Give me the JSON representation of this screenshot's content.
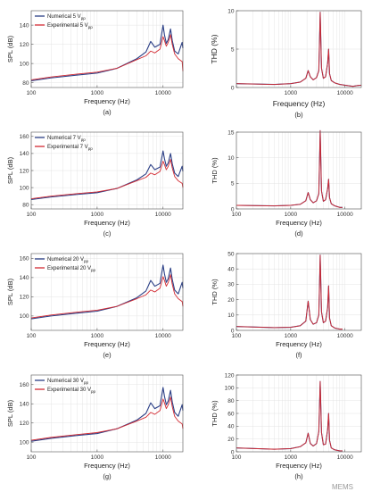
{
  "figure": {
    "captions": [
      "(a)",
      "(b)",
      "(c)",
      "(d)",
      "(e)",
      "(f)",
      "(g)",
      "(h)"
    ],
    "watermark": "MEMS"
  },
  "colors": {
    "numerical": "#2b3f86",
    "experimental": "#d32a32"
  },
  "chart_data": [
    {
      "type": "line",
      "log_x": true,
      "grid": true,
      "xlabel": "Frequency (Hz)",
      "ylabel": "SPL (dB)",
      "xlim": [
        100,
        20000
      ],
      "ylim": [
        75,
        155
      ],
      "xticks": [
        100,
        1000,
        10000
      ],
      "yticks": [
        80,
        100,
        120,
        140
      ],
      "legend_position": "top-left",
      "series": [
        {
          "name": "Numerical 5 V",
          "sub": "pp",
          "color": "#2b3f86",
          "x": [
            100,
            200,
            500,
            1000,
            2000,
            4000,
            5500,
            6500,
            7000,
            7500,
            9000,
            10000,
            10500,
            11200,
            12000,
            13000,
            13800,
            15000,
            17000,
            19500,
            20000
          ],
          "y": [
            82,
            85,
            88,
            90,
            95,
            105,
            112,
            123,
            120,
            117,
            120,
            140,
            130,
            121,
            125,
            136,
            124,
            113,
            110,
            122,
            116
          ]
        },
        {
          "name": "Experimental 5 V",
          "sub": "pp",
          "color": "#d32a32",
          "x": [
            100,
            200,
            500,
            1000,
            2000,
            4000,
            5500,
            6500,
            7000,
            7500,
            9000,
            10000,
            10500,
            11200,
            12000,
            13000,
            13800,
            15000,
            17000,
            19500,
            20000
          ],
          "y": [
            83,
            86,
            89,
            91,
            95,
            104,
            108,
            113,
            112,
            111,
            115,
            128,
            124,
            118,
            122,
            130,
            120,
            110,
            105,
            102,
            92
          ]
        }
      ]
    },
    {
      "type": "line",
      "log_x": true,
      "grid": true,
      "xlabel": "Frequency (Hz)",
      "ylabel": "THD (%)",
      "xlim": [
        100,
        20000
      ],
      "ylim": [
        0,
        10
      ],
      "xticks": [
        100,
        1000,
        10000
      ],
      "xticklabels": [
        "",
        "1000",
        "10000"
      ],
      "yticks": [
        0,
        5,
        10
      ],
      "series": [
        {
          "color": "#2b3f86",
          "x": [
            100,
            500,
            1000,
            1500,
            1900,
            2100,
            2300,
            2600,
            3000,
            3300,
            3500,
            3700,
            4000,
            4400,
            4800,
            5000,
            5200,
            5600,
            6500,
            8000,
            10000,
            14000,
            17000,
            20000
          ],
          "y": [
            0.5,
            0.4,
            0.5,
            0.7,
            1.2,
            2.2,
            1.4,
            1.0,
            1.3,
            2.2,
            9.8,
            2.5,
            1.2,
            1.4,
            3.2,
            5.0,
            1.8,
            0.9,
            0.6,
            0.4,
            0.3,
            0.15,
            0.25,
            0.3
          ]
        },
        {
          "color": "#d32a32",
          "x": [
            100,
            500,
            1000,
            1500,
            1900,
            2100,
            2300,
            2600,
            3000,
            3300,
            3500,
            3700,
            4000,
            4400,
            4800,
            5000,
            5200,
            5600,
            6500,
            8000,
            10000,
            14000,
            17000,
            20000
          ],
          "y": [
            0.5,
            0.4,
            0.5,
            0.7,
            1.2,
            2.2,
            1.4,
            1.0,
            1.3,
            2.2,
            9.8,
            2.5,
            1.2,
            1.4,
            3.2,
            5.0,
            1.8,
            0.9,
            0.6,
            0.4,
            0.3,
            0.15,
            0.25,
            0.3
          ]
        }
      ]
    },
    {
      "type": "line",
      "log_x": true,
      "grid": true,
      "xlabel": "Frequency (Hz)",
      "ylabel": "SPL (dB)",
      "xlim": [
        100,
        20000
      ],
      "ylim": [
        75,
        165
      ],
      "xticks": [
        100,
        1000,
        10000
      ],
      "yticks": [
        80,
        100,
        120,
        140,
        160
      ],
      "legend_position": "top-left",
      "series": [
        {
          "name": "Numerical 7 V",
          "sub": "pp",
          "color": "#2b3f86",
          "x": [
            100,
            200,
            500,
            1000,
            2000,
            4000,
            5500,
            6500,
            7000,
            7500,
            9000,
            10000,
            10500,
            11200,
            12000,
            13000,
            13800,
            15000,
            17000,
            19500,
            20000
          ],
          "y": [
            86,
            89,
            92,
            94,
            99,
            109,
            116,
            127,
            124,
            121,
            124,
            143,
            134,
            125,
            129,
            140,
            128,
            117,
            113,
            125,
            119
          ]
        },
        {
          "name": "Experimental 7 V",
          "sub": "pp",
          "color": "#d32a32",
          "x": [
            100,
            200,
            500,
            1000,
            2000,
            4000,
            5500,
            6500,
            7000,
            7500,
            9000,
            10000,
            10500,
            11200,
            12000,
            13000,
            13800,
            15000,
            17000,
            19500,
            20000
          ],
          "y": [
            87,
            90,
            93,
            95,
            99,
            108,
            112,
            117,
            116,
            115,
            119,
            131,
            127,
            121,
            125,
            133,
            123,
            113,
            108,
            105,
            100
          ]
        }
      ]
    },
    {
      "type": "line",
      "log_x": true,
      "grid": true,
      "xlabel": "Frequency (Hz)",
      "ylabel": "THD (%)",
      "xlim": [
        100,
        20000
      ],
      "ylim": [
        0,
        15
      ],
      "xticks": [
        100,
        1000,
        10000
      ],
      "yticks": [
        0,
        5,
        10,
        15
      ],
      "series": [
        {
          "color": "#2b3f86",
          "x": [
            100,
            500,
            1000,
            1500,
            1900,
            2100,
            2300,
            2600,
            3000,
            3300,
            3500,
            3700,
            4000,
            4400,
            4800,
            5000,
            5200,
            5600,
            6500,
            8000,
            9000
          ],
          "y": [
            0.7,
            0.6,
            0.7,
            0.9,
            1.6,
            3.2,
            1.8,
            1.2,
            1.6,
            3.0,
            15.3,
            3.5,
            1.5,
            1.8,
            4.0,
            5.8,
            2.2,
            1.0,
            0.6,
            0.3,
            0.3
          ]
        },
        {
          "color": "#d32a32",
          "x": [
            100,
            500,
            1000,
            1500,
            1900,
            2100,
            2300,
            2600,
            3000,
            3300,
            3500,
            3700,
            4000,
            4400,
            4800,
            5000,
            5200,
            5600,
            6500,
            8000,
            9000
          ],
          "y": [
            0.7,
            0.6,
            0.7,
            0.9,
            1.6,
            3.2,
            1.8,
            1.2,
            1.6,
            3.0,
            15.3,
            3.5,
            1.5,
            1.8,
            4.0,
            5.8,
            2.2,
            1.0,
            0.6,
            0.3,
            0.3
          ]
        }
      ]
    },
    {
      "type": "line",
      "log_x": true,
      "grid": true,
      "xlabel": "Frequency (Hz)",
      "ylabel": "SPL (dB)",
      "xlim": [
        100,
        20000
      ],
      "ylim": [
        85,
        165
      ],
      "xticks": [
        100,
        1000,
        10000
      ],
      "yticks": [
        100,
        120,
        140,
        160
      ],
      "legend_position": "top-left",
      "series": [
        {
          "name": "Numerical 20 V",
          "sub": "pp",
          "color": "#2b3f86",
          "x": [
            100,
            200,
            500,
            1000,
            2000,
            4000,
            5500,
            6500,
            7000,
            7500,
            9000,
            10000,
            10500,
            11200,
            12000,
            13000,
            13800,
            15000,
            17000,
            19500,
            20000
          ],
          "y": [
            97,
            100,
            103,
            105,
            110,
            119,
            126,
            137,
            134,
            131,
            134,
            153,
            144,
            135,
            139,
            150,
            138,
            127,
            123,
            135,
            129
          ]
        },
        {
          "name": "Experimental 20 V",
          "sub": "pp",
          "color": "#d32a32",
          "x": [
            100,
            200,
            500,
            1000,
            2000,
            4000,
            5500,
            6500,
            7000,
            7500,
            9000,
            10000,
            10500,
            11200,
            12000,
            13000,
            13800,
            15000,
            17000,
            19500,
            20000
          ],
          "y": [
            98,
            101,
            104,
            106,
            110,
            118,
            122,
            127,
            126,
            125,
            129,
            141,
            137,
            131,
            135,
            143,
            133,
            123,
            118,
            115,
            110
          ]
        }
      ]
    },
    {
      "type": "line",
      "log_x": true,
      "grid": true,
      "xlabel": "Frequency (Hz)",
      "ylabel": "THD (%)",
      "xlim": [
        100,
        20000
      ],
      "ylim": [
        0,
        50
      ],
      "xticks": [
        100,
        1000,
        10000
      ],
      "yticks": [
        0,
        10,
        20,
        30,
        40,
        50
      ],
      "series": [
        {
          "color": "#2b3f86",
          "x": [
            100,
            500,
            1000,
            1500,
            1900,
            2100,
            2300,
            2600,
            3000,
            3300,
            3500,
            3700,
            4000,
            4400,
            4800,
            5000,
            5200,
            5600,
            6500,
            8000,
            9000
          ],
          "y": [
            2.5,
            1.8,
            2.0,
            3.0,
            6.0,
            19.0,
            7.0,
            4.0,
            5.0,
            10.0,
            49.0,
            12.0,
            5.0,
            6.0,
            15.0,
            29.0,
            8.0,
            3.0,
            1.5,
            0.8,
            0.8
          ]
        },
        {
          "color": "#d32a32",
          "x": [
            100,
            500,
            1000,
            1500,
            1900,
            2100,
            2300,
            2600,
            3000,
            3300,
            3500,
            3700,
            4000,
            4400,
            4800,
            5000,
            5200,
            5600,
            6500,
            8000,
            9000
          ],
          "y": [
            2.5,
            1.8,
            2.0,
            3.0,
            6.0,
            19.0,
            7.0,
            4.0,
            5.0,
            10.0,
            49.0,
            12.0,
            5.0,
            6.0,
            15.0,
            29.0,
            8.0,
            3.0,
            1.5,
            0.8,
            0.8
          ]
        }
      ]
    },
    {
      "type": "line",
      "log_x": true,
      "grid": true,
      "xlabel": "Frequency (Hz)",
      "ylabel": "SPL (dB)",
      "xlim": [
        100,
        20000
      ],
      "ylim": [
        90,
        170
      ],
      "xticks": [
        100,
        1000,
        10000
      ],
      "yticks": [
        100,
        120,
        140,
        160
      ],
      "legend_position": "top-left",
      "series": [
        {
          "name": "Numerical 30 V",
          "sub": "pp",
          "color": "#2b3f86",
          "x": [
            100,
            200,
            500,
            1000,
            2000,
            4000,
            5500,
            6500,
            7000,
            7500,
            9000,
            10000,
            10500,
            11200,
            12000,
            13000,
            13800,
            15000,
            17000,
            19500,
            20000
          ],
          "y": [
            101,
            104,
            107,
            109,
            114,
            123,
            130,
            141,
            138,
            135,
            138,
            157,
            148,
            139,
            143,
            154,
            142,
            131,
            127,
            139,
            133
          ]
        },
        {
          "name": "Experimental 30 V",
          "sub": "pp",
          "color": "#d32a32",
          "x": [
            100,
            200,
            500,
            1000,
            2000,
            4000,
            5500,
            6500,
            7000,
            7500,
            9000,
            10000,
            10500,
            11200,
            12000,
            13000,
            13800,
            15000,
            17000,
            19500,
            20000
          ],
          "y": [
            102,
            105,
            108,
            110,
            114,
            122,
            126,
            131,
            130,
            129,
            133,
            145,
            141,
            135,
            139,
            147,
            137,
            127,
            122,
            119,
            114
          ]
        }
      ]
    },
    {
      "type": "line",
      "log_x": true,
      "grid": true,
      "xlabel": "Frequency (Hz)",
      "ylabel": "THD (%)",
      "xlim": [
        100,
        20000
      ],
      "ylim": [
        0,
        120
      ],
      "xticks": [
        100,
        1000,
        10000
      ],
      "yticks": [
        0,
        20,
        40,
        60,
        80,
        100,
        120
      ],
      "series": [
        {
          "color": "#2b3f86",
          "x": [
            100,
            500,
            1000,
            1500,
            1900,
            2100,
            2300,
            2600,
            3000,
            3300,
            3500,
            3700,
            4000,
            4400,
            4800,
            5000,
            5200,
            5600,
            6500,
            8000,
            9000
          ],
          "y": [
            6,
            4,
            5,
            8,
            14,
            29,
            13,
            9,
            13,
            32,
            110,
            30,
            11,
            12,
            35,
            60,
            18,
            6,
            3,
            1.5,
            1.5
          ]
        },
        {
          "color": "#d32a32",
          "x": [
            100,
            500,
            1000,
            1500,
            1900,
            2100,
            2300,
            2600,
            3000,
            3300,
            3500,
            3700,
            4000,
            4400,
            4800,
            5000,
            5200,
            5600,
            6500,
            8000,
            9000
          ],
          "y": [
            6,
            4,
            5,
            8,
            14,
            29,
            13,
            9,
            13,
            32,
            110,
            30,
            11,
            12,
            35,
            60,
            18,
            6,
            3,
            1.5,
            1.5
          ]
        }
      ]
    }
  ]
}
